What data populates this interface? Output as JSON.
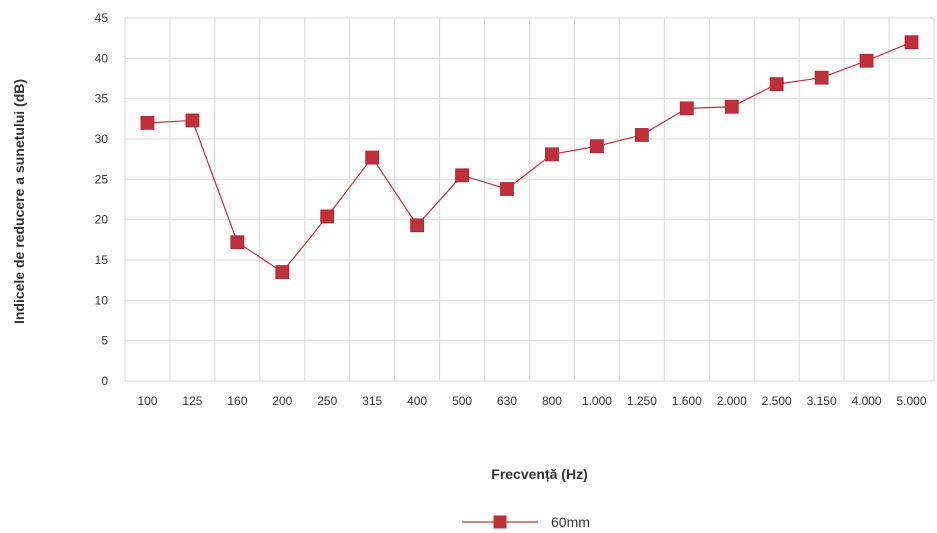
{
  "chart_data": {
    "type": "line",
    "title": "",
    "xlabel": "Frecvență (Hz)",
    "ylabel": "Indicele de reducere a sunetului (dB)",
    "categories": [
      "100",
      "125",
      "160",
      "200",
      "250",
      "315",
      "400",
      "500",
      "630",
      "800",
      "1.000",
      "1.250",
      "1.600",
      "2.000",
      "2.500",
      "3.150",
      "4.000",
      "5.000"
    ],
    "ylim": [
      0,
      45
    ],
    "yticks": [
      0,
      5,
      10,
      15,
      20,
      25,
      30,
      35,
      40,
      45
    ],
    "grid": true,
    "legend_position": "bottom",
    "series": [
      {
        "name": "60mm",
        "color": "#c0303b",
        "marker": "square",
        "values": [
          32.0,
          32.3,
          17.2,
          13.5,
          20.4,
          27.7,
          19.3,
          25.5,
          23.8,
          28.1,
          29.1,
          30.5,
          33.8,
          34.0,
          36.8,
          37.6,
          39.7,
          42.0
        ]
      }
    ]
  }
}
